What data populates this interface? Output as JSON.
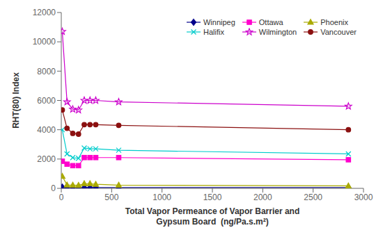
{
  "chart_data": {
    "type": "line",
    "xlabel": "Total Vapor Permeance of Vapor Barrier and\nGypsum Board  (ng/Pa.s.m²)",
    "ylabel": "RHT(80) Index",
    "xlim": [
      0,
      3000
    ],
    "ylim": [
      0,
      12000
    ],
    "xticks": [
      0,
      500,
      1000,
      1500,
      2000,
      2500,
      3000
    ],
    "yticks": [
      0,
      2000,
      4000,
      6000,
      8000,
      10000,
      12000
    ],
    "grid": false,
    "legend": "upper right",
    "x": [
      10,
      57,
      114,
      171,
      228,
      285,
      342,
      570,
      2850
    ],
    "series": [
      {
        "name": "Winnipeg",
        "color": "#00008B",
        "marker": "diamond",
        "values": [
          80,
          60,
          50,
          50,
          50,
          50,
          50,
          50,
          50
        ]
      },
      {
        "name": "Ottawa",
        "color": "#FF00CC",
        "marker": "square",
        "values": [
          1850,
          1650,
          1550,
          1550,
          2100,
          2100,
          2100,
          2100,
          1950
        ]
      },
      {
        "name": "Phoenix",
        "color": "#AAAA00",
        "marker": "triangle",
        "values": [
          820,
          230,
          220,
          210,
          320,
          320,
          280,
          220,
          170
        ]
      },
      {
        "name": "Halifix",
        "color": "#00CCCC",
        "marker": "cross",
        "values": [
          4000,
          2350,
          2100,
          2050,
          2750,
          2700,
          2700,
          2600,
          2350
        ]
      },
      {
        "name": "Wilmington",
        "color": "#CC00CC",
        "marker": "star",
        "values": [
          10700,
          5900,
          5400,
          5350,
          6000,
          6000,
          6000,
          5900,
          5600
        ]
      },
      {
        "name": "Vancouver",
        "color": "#8B1010",
        "marker": "circle",
        "values": [
          5350,
          4100,
          3750,
          3700,
          4350,
          4350,
          4350,
          4300,
          4000
        ]
      }
    ]
  }
}
